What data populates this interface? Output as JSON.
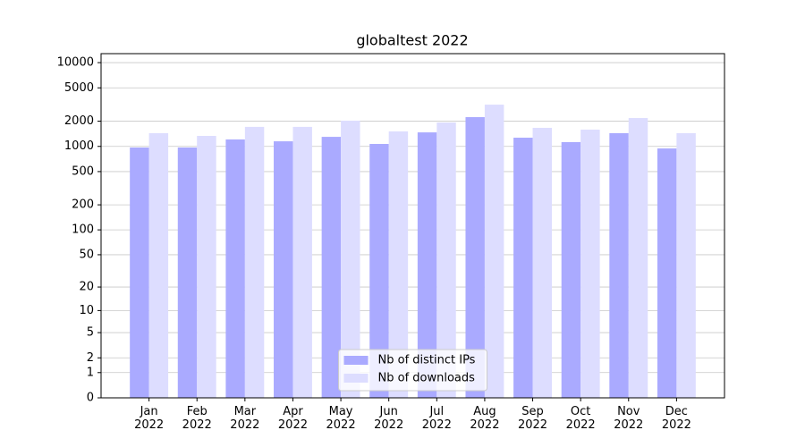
{
  "chart_data": {
    "type": "bar",
    "title": "globaltest 2022",
    "categories": [
      "Jan\n2022",
      "Feb\n2022",
      "Mar\n2022",
      "Apr\n2022",
      "May\n2022",
      "Jun\n2022",
      "Jul\n2022",
      "Aug\n2022",
      "Sep\n2022",
      "Oct\n2022",
      "Nov\n2022",
      "Dec\n2022"
    ],
    "series": [
      {
        "name": "Nb of distinct IPs",
        "color": "#aaaaff",
        "values": [
          970,
          970,
          1210,
          1150,
          1300,
          1070,
          1470,
          2235,
          1270,
          1125,
          1440,
          945
        ]
      },
      {
        "name": "Nb of downloads",
        "color": "#ddddff",
        "values": [
          1440,
          1335,
          1710,
          1710,
          2030,
          1510,
          1930,
          3150,
          1665,
          1585,
          2180,
          1440
        ]
      }
    ],
    "yscale": "log1p",
    "ylim": [
      0,
      12800
    ],
    "yticks": [
      0,
      1,
      2,
      5,
      10,
      20,
      50,
      100,
      200,
      500,
      1000,
      2000,
      5000,
      10000
    ],
    "grid": true,
    "legend": "lower center"
  }
}
